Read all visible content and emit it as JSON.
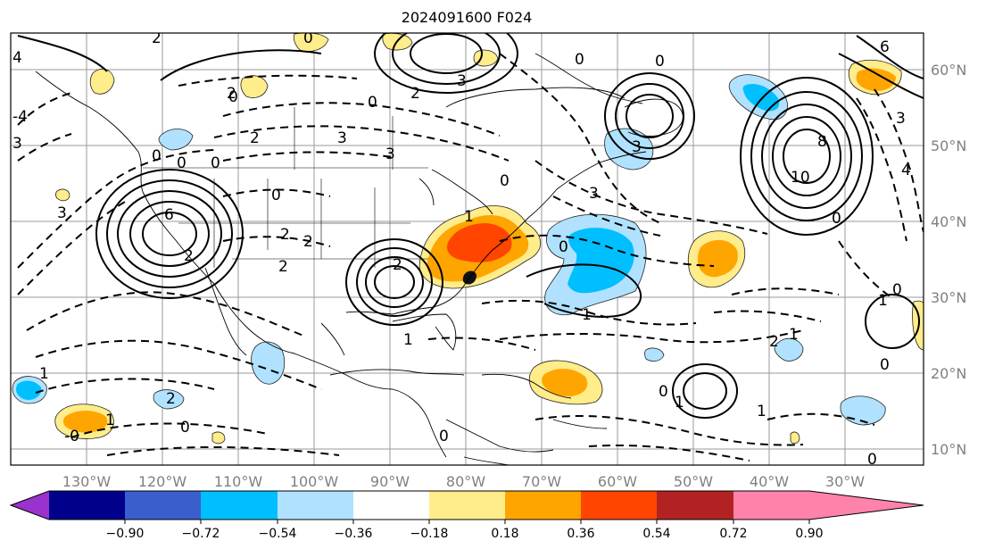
{
  "title": "2024091600 F024",
  "map": {
    "lon_labels": [
      "130°W",
      "120°W",
      "110°W",
      "100°W",
      "90°W",
      "80°W",
      "70°W",
      "60°W",
      "50°W",
      "40°W",
      "30°W"
    ],
    "lat_labels": [
      "60°N",
      "50°N",
      "40°N",
      "30°N",
      "20°N",
      "10°N"
    ],
    "contour_labels": [
      "2",
      "0",
      "2",
      "3",
      "0",
      "0",
      "2",
      "3",
      "0",
      "-4",
      "2",
      "3",
      "0",
      "6",
      "0",
      "3",
      "3",
      "6",
      "2",
      "4",
      "0",
      "0",
      "2",
      "3",
      "2",
      "1",
      "0",
      "2",
      "1",
      "1",
      "0",
      "3",
      "3",
      "0",
      "8",
      "10",
      "4",
      "1",
      "0",
      "2",
      "1",
      "0",
      "2",
      "1",
      "-0",
      "0",
      "0",
      "1",
      "0",
      "2",
      "1",
      "0",
      "1",
      "0"
    ]
  },
  "colorbar": {
    "tick_labels": [
      "−0.90",
      "−0.72",
      "−0.54",
      "−0.36",
      "−0.18",
      "0.18",
      "0.36",
      "0.54",
      "0.72",
      "0.90"
    ],
    "colors": [
      "#9a32cd",
      "#00008b",
      "#3a5fcd",
      "#00bfff",
      "#b0e2ff",
      "#ffffff",
      "#ffec8b",
      "#ffa500",
      "#ff4500",
      "#b22222",
      "#ff82ab"
    ]
  }
}
